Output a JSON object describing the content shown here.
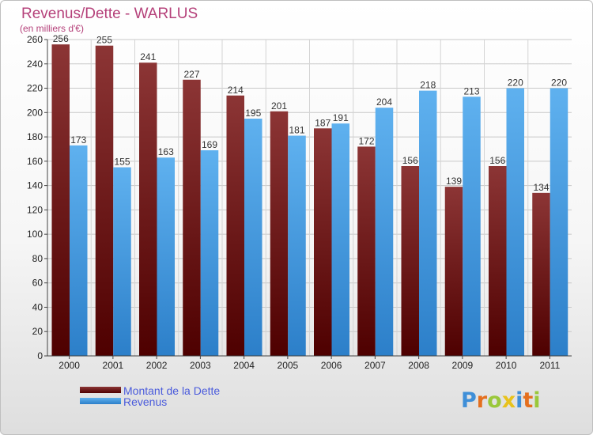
{
  "chart_data": {
    "type": "bar",
    "title": "Revenus/Dette - WARLUS",
    "subtitle": "(en milliers d'€)",
    "categories": [
      "2000",
      "2001",
      "2002",
      "2003",
      "2004",
      "2005",
      "2006",
      "2007",
      "2008",
      "2009",
      "2010",
      "2011"
    ],
    "series": [
      {
        "name": "Montant de la Dette",
        "values": [
          256,
          255,
          241,
          227,
          214,
          201,
          187,
          172,
          156,
          139,
          156,
          134
        ],
        "color": "#7d2626"
      },
      {
        "name": "Revenus",
        "values": [
          173,
          155,
          163,
          169,
          195,
          181,
          191,
          204,
          218,
          213,
          220,
          220
        ],
        "color": "#4fa6e8"
      }
    ],
    "ylim": [
      0,
      260
    ],
    "ytick_step": 20,
    "grid": true,
    "legend_position": "bottom-left"
  },
  "logo": {
    "letters": [
      "P",
      "r",
      "o",
      "x",
      "i",
      "t",
      "i"
    ],
    "colors": [
      "#3f8fd8",
      "#e46f1e",
      "#9ac83a",
      "#e8c21c",
      "#3f8fd8",
      "#e46f1e",
      "#9ac83a"
    ]
  }
}
